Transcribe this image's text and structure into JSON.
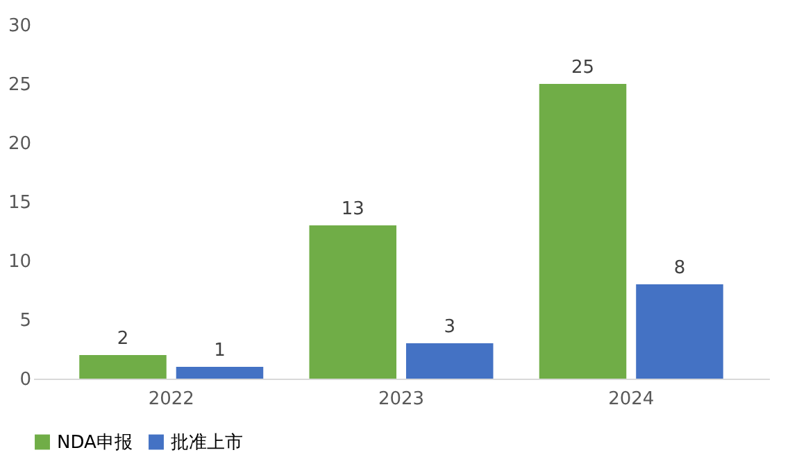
{
  "chart_data": {
    "type": "bar",
    "categories": [
      "2022",
      "2023",
      "2024"
    ],
    "series": [
      {
        "name": "NDA申报",
        "color": "#70ad47",
        "values": [
          2,
          13,
          25
        ]
      },
      {
        "name": "批准上市",
        "color": "#4472c4",
        "values": [
          1,
          3,
          8
        ]
      }
    ],
    "ylim": [
      0,
      30
    ],
    "yticks": [
      0,
      5,
      10,
      15,
      20,
      25,
      30
    ],
    "grid": false,
    "legend": "bottom",
    "data_labels": true
  }
}
